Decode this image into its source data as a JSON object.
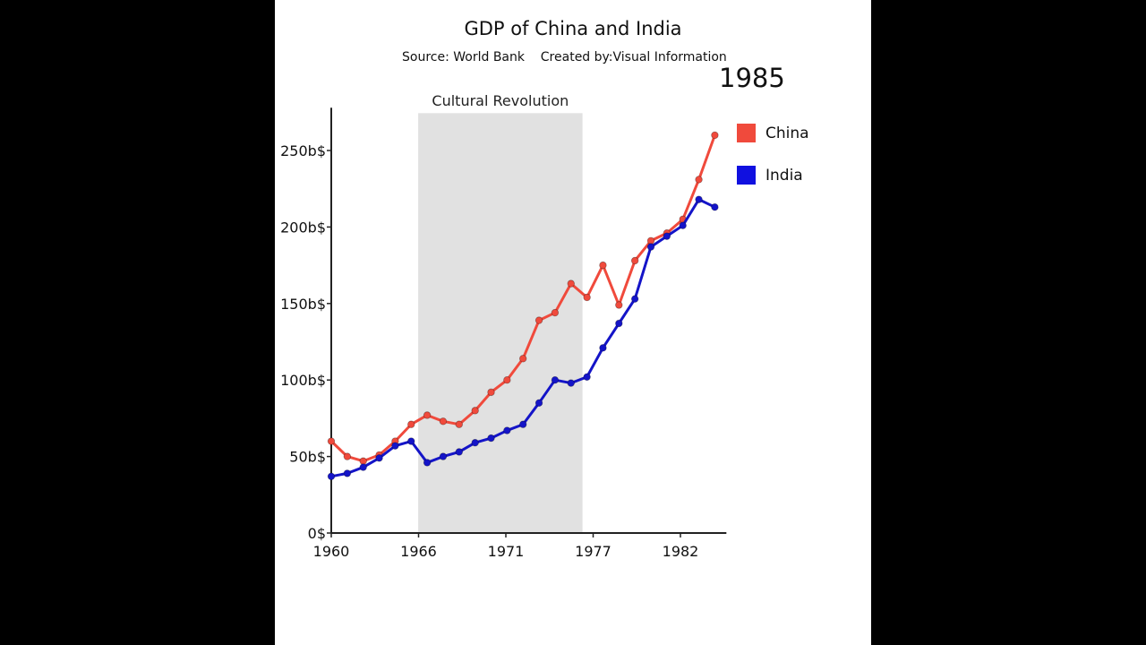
{
  "chart_data": {
    "type": "line",
    "title": "GDP of China and India",
    "subtitle": "Source: World Bank    Created by:Visual Information",
    "current_year": "1985",
    "xlim": [
      1960,
      1984.5
    ],
    "ylim": [
      0,
      275
    ],
    "x_tick_labels": [
      "1960",
      "1966",
      "1971",
      "1977",
      "1982"
    ],
    "y_ticks": [
      0,
      50,
      100,
      150,
      200,
      250
    ],
    "y_tick_labels": [
      "0$",
      "50b$",
      "100b$",
      "150b$",
      "200b$",
      "250b$"
    ],
    "grid": false,
    "legend_placement": "right",
    "annotation": {
      "label": "Cultural Revolution",
      "start": 1966,
      "end": 1976,
      "color": "#e1e1e1"
    },
    "x": [
      1960,
      1961,
      1962,
      1963,
      1964,
      1965,
      1966,
      1967,
      1968,
      1969,
      1970,
      1971,
      1972,
      1973,
      1974,
      1975,
      1976,
      1977,
      1978,
      1979,
      1980,
      1981,
      1982,
      1983,
      1984
    ],
    "series": [
      {
        "name": "China",
        "color": "#f04a3c",
        "values": [
          60,
          50,
          47,
          51,
          60,
          71,
          77,
          73,
          71,
          80,
          92,
          100,
          114,
          139,
          144,
          163,
          154,
          175,
          149,
          178,
          191,
          196,
          205,
          231,
          260
        ]
      },
      {
        "name": "India",
        "color": "#1414c8",
        "values": [
          37,
          39,
          43,
          49,
          57,
          60,
          46,
          50,
          53,
          59,
          62,
          67,
          71,
          85,
          100,
          98,
          102,
          121,
          137,
          153,
          187,
          194,
          201,
          218,
          213
        ]
      }
    ]
  }
}
